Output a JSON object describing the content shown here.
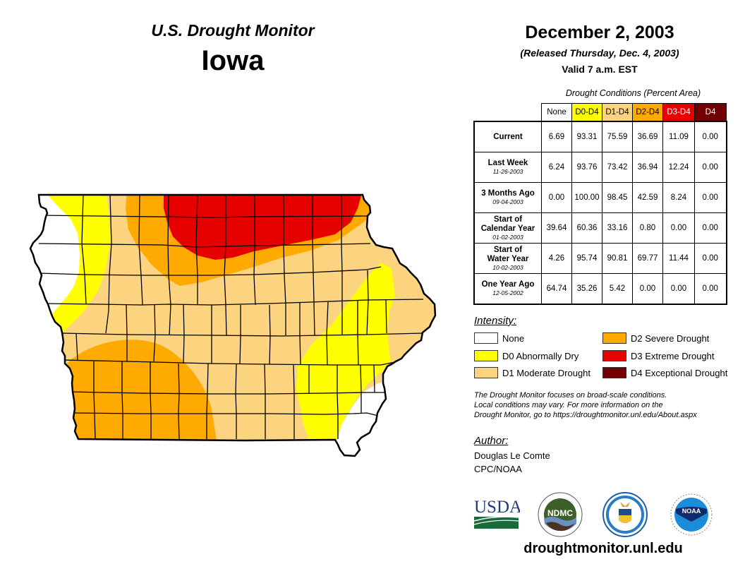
{
  "header": {
    "subtitle": "U.S. Drought Monitor",
    "state": "Iowa",
    "date": "December 2, 2003",
    "released": "(Released Thursday, Dec. 4, 2003)",
    "valid": "Valid 7 a.m. EST"
  },
  "table": {
    "caption": "Drought Conditions (Percent Area)",
    "columns": [
      {
        "label": "None",
        "bg": "#ffffff",
        "fg": "#000000"
      },
      {
        "label": "D0-D4",
        "bg": "#ffff00",
        "fg": "#000000"
      },
      {
        "label": "D1-D4",
        "bg": "#fcd37f",
        "fg": "#000000"
      },
      {
        "label": "D2-D4",
        "bg": "#ffaa00",
        "fg": "#000000"
      },
      {
        "label": "D3-D4",
        "bg": "#e60000",
        "fg": "#ffffff"
      },
      {
        "label": "D4",
        "bg": "#730000",
        "fg": "#ffffff"
      }
    ],
    "rows": [
      {
        "label": "Current",
        "date": "",
        "values": [
          "6.69",
          "93.31",
          "75.59",
          "36.69",
          "11.09",
          "0.00"
        ]
      },
      {
        "label": "Last Week",
        "date": "11-26-2003",
        "values": [
          "6.24",
          "93.76",
          "73.42",
          "36.94",
          "12.24",
          "0.00"
        ]
      },
      {
        "label": "3 Months Ago",
        "date": "09-04-2003",
        "values": [
          "0.00",
          "100.00",
          "98.45",
          "42.59",
          "8.24",
          "0.00"
        ]
      },
      {
        "label": "Start of Calendar Year",
        "date": "01-02-2003",
        "values": [
          "39.64",
          "60.36",
          "33.16",
          "0.80",
          "0.00",
          "0.00"
        ]
      },
      {
        "label": "Start of Water Year",
        "date": "10-02-2003",
        "values": [
          "4.26",
          "95.74",
          "90.81",
          "69.77",
          "11.44",
          "0.00"
        ]
      },
      {
        "label": "One Year Ago",
        "date": "12-05-2002",
        "values": [
          "64.74",
          "35.26",
          "5.42",
          "0.00",
          "0.00",
          "0.00"
        ]
      }
    ]
  },
  "legend": {
    "title": "Intensity:",
    "items": [
      {
        "label": "None",
        "color": "#ffffff"
      },
      {
        "label": "D0 Abnormally Dry",
        "color": "#ffff00"
      },
      {
        "label": "D1 Moderate Drought",
        "color": "#fcd37f"
      },
      {
        "label": "D2 Severe Drought",
        "color": "#ffaa00"
      },
      {
        "label": "D3 Extreme Drought",
        "color": "#e60000"
      },
      {
        "label": "D4 Exceptional Drought",
        "color": "#730000"
      }
    ]
  },
  "note": {
    "line1": "The Drought Monitor focuses on broad-scale conditions.",
    "line2": "Local conditions may vary. For more information on the",
    "line3": "Drought Monitor, go to https://droughtmonitor.unl.edu/About.aspx"
  },
  "author": {
    "title": "Author:",
    "name": "Douglas Le Comte",
    "org": "CPC/NOAA"
  },
  "logos": {
    "usda": "USDA",
    "ndmc": "NDMC",
    "commerce": "Department of Commerce seal",
    "noaa": "NOAA"
  },
  "footer": {
    "site": "droughtmonitor.unl.edu"
  }
}
